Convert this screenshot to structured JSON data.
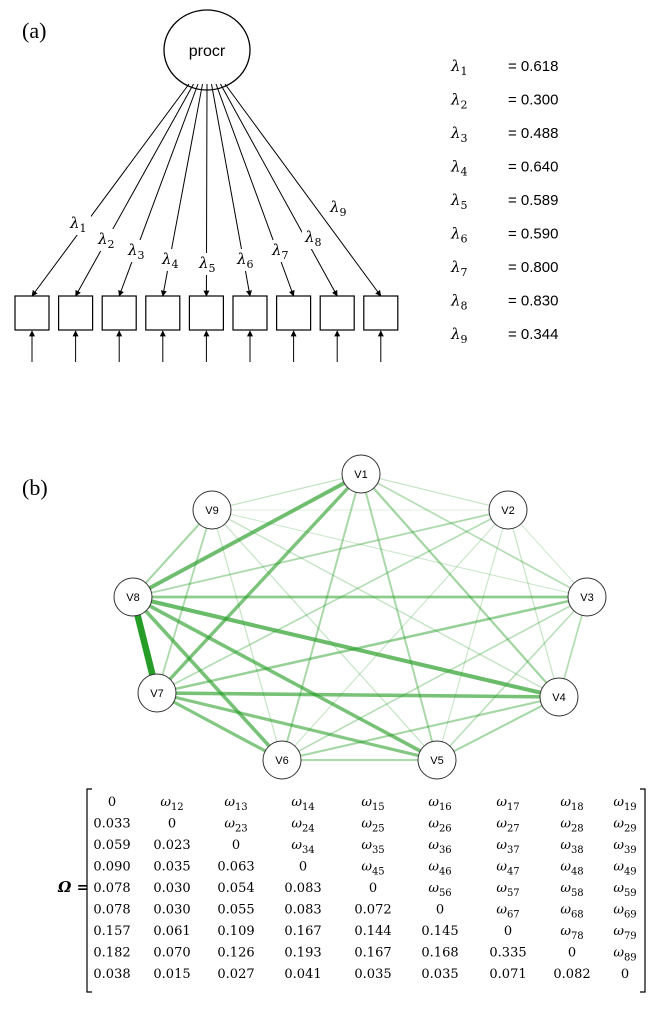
{
  "panel_a": {
    "label": "(a)",
    "latent": "procr",
    "indicators": [
      {
        "symbol": "λ",
        "sub": "1",
        "value": "= 0.618"
      },
      {
        "symbol": "λ",
        "sub": "2",
        "value": "= 0.300"
      },
      {
        "symbol": "λ",
        "sub": "3",
        "value": "= 0.488"
      },
      {
        "symbol": "λ",
        "sub": "4",
        "value": "= 0.640"
      },
      {
        "symbol": "λ",
        "sub": "5",
        "value": "= 0.589"
      },
      {
        "symbol": "λ",
        "sub": "6",
        "value": "= 0.590"
      },
      {
        "symbol": "λ",
        "sub": "7",
        "value": "= 0.800"
      },
      {
        "symbol": "λ",
        "sub": "8",
        "value": "= 0.830"
      },
      {
        "symbol": "λ",
        "sub": "9",
        "value": "= 0.344"
      }
    ]
  },
  "panel_b": {
    "label": "(b)",
    "nodes": [
      "V1",
      "V2",
      "V3",
      "V4",
      "V5",
      "V6",
      "V7",
      "V8",
      "V9"
    ],
    "edge_color": "#1f9a1f"
  },
  "matrix": {
    "label": "Ω =",
    "rows": [
      [
        "0",
        "ω12",
        "ω13",
        "ω14",
        "ω15",
        "ω16",
        "ω17",
        "ω18",
        "ω19"
      ],
      [
        "0.033",
        "0",
        "ω23",
        "ω24",
        "ω25",
        "ω26",
        "ω27",
        "ω28",
        "ω29"
      ],
      [
        "0.059",
        "0.023",
        "0",
        "ω34",
        "ω35",
        "ω36",
        "ω37",
        "ω38",
        "ω39"
      ],
      [
        "0.090",
        "0.035",
        "0.063",
        "0",
        "ω45",
        "ω46",
        "ω47",
        "ω48",
        "ω49"
      ],
      [
        "0.078",
        "0.030",
        "0.054",
        "0.083",
        "0",
        "ω56",
        "ω57",
        "ω58",
        "ω59"
      ],
      [
        "0.078",
        "0.030",
        "0.055",
        "0.083",
        "0.072",
        "0",
        "ω67",
        "ω68",
        "ω69"
      ],
      [
        "0.157",
        "0.061",
        "0.109",
        "0.167",
        "0.144",
        "0.145",
        "0",
        "ω78",
        "ω79"
      ],
      [
        "0.182",
        "0.070",
        "0.126",
        "0.193",
        "0.167",
        "0.168",
        "0.335",
        "0",
        "ω89"
      ],
      [
        "0.038",
        "0.015",
        "0.027",
        "0.041",
        "0.035",
        "0.035",
        "0.071",
        "0.082",
        "0"
      ]
    ]
  }
}
